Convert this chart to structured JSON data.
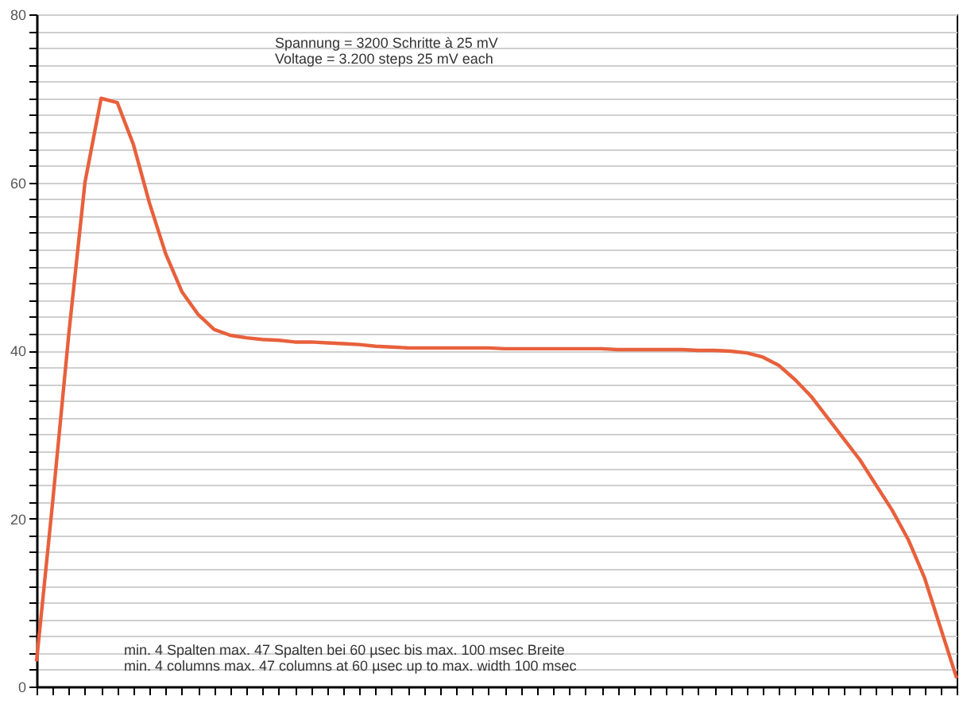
{
  "chart_data": {
    "type": "line",
    "categories": [
      null,
      null,
      null,
      null,
      null,
      null,
      null,
      null,
      null,
      null,
      null,
      null,
      null,
      null,
      null,
      null,
      null,
      null,
      null,
      null,
      null,
      null,
      null,
      null,
      null,
      null,
      null,
      null,
      null,
      null,
      null,
      null,
      null,
      null,
      null,
      null,
      null,
      null,
      null,
      null,
      null,
      null,
      null,
      null,
      null,
      null,
      null,
      null,
      null,
      null,
      null,
      null,
      null,
      null,
      null,
      null,
      null,
      null
    ],
    "series": [
      {
        "color": "#e8603c",
        "values": [
          3,
          22,
          42,
          60,
          70,
          69.5,
          64.5,
          57.5,
          51.5,
          47,
          44.3,
          42.5,
          41.8,
          41.5,
          41.3,
          41.2,
          41,
          41,
          40.9,
          40.8,
          40.7,
          40.5,
          40.4,
          40.3,
          40.3,
          40.3,
          40.3,
          40.3,
          40.3,
          40.2,
          40.2,
          40.2,
          40.2,
          40.2,
          40.2,
          40.2,
          40.1,
          40.1,
          40.1,
          40.1,
          40.1,
          40,
          40,
          39.9,
          39.7,
          39.2,
          38.2,
          36.5,
          34.5,
          32,
          29.5,
          27,
          24,
          21,
          17.5,
          13,
          7,
          1
        ]
      }
    ],
    "ylim": [
      0,
      80
    ],
    "yticks": [
      0,
      {
        "value": 2,
        "label": null
      },
      {
        "value": 4,
        "label": null
      },
      {
        "value": 6,
        "label": null
      },
      {
        "value": 8,
        "label": null
      },
      {
        "value": 10,
        "label": null
      },
      {
        "value": 12,
        "label": null
      },
      {
        "value": 14,
        "label": null
      },
      {
        "value": 16,
        "label": null
      },
      {
        "value": 18,
        "label": null
      },
      20,
      {
        "value": 22,
        "label": null
      },
      {
        "value": 24,
        "label": null
      },
      {
        "value": 26,
        "label": null
      },
      {
        "value": 28,
        "label": null
      },
      {
        "value": 30,
        "label": null
      },
      {
        "value": 32,
        "label": null
      },
      {
        "value": 34,
        "label": null
      },
      {
        "value": 36,
        "label": null
      },
      {
        "value": 38,
        "label": null
      },
      40,
      {
        "value": 42,
        "label": null
      },
      {
        "value": 44,
        "label": null
      },
      {
        "value": 46,
        "label": null
      },
      {
        "value": 48,
        "label": null
      },
      {
        "value": 50,
        "label": null
      },
      {
        "value": 52,
        "label": null
      },
      {
        "value": 54,
        "label": null
      },
      {
        "value": 56,
        "label": null
      },
      {
        "value": 58,
        "label": null
      },
      60,
      {
        "value": 62,
        "label": null
      },
      {
        "value": 64,
        "label": null
      },
      {
        "value": 66,
        "label": null
      },
      {
        "value": 68,
        "label": null
      },
      {
        "value": 70,
        "label": null
      },
      {
        "value": 72,
        "label": null
      },
      {
        "value": 74,
        "label": null
      },
      {
        "value": 76,
        "label": null
      },
      {
        "value": 78,
        "label": null
      },
      80
    ],
    "grid": "y",
    "tick_labels": "y",
    "marker": "none",
    "line_style": "solid",
    "annotations": [
      "Spannung = 3200 Schritte à 25 mV\nVoltage = 3.200 steps 25 mV each",
      "min. 4 Spalten max. 47 Spalten bei 60 µsec bis max. 100 msec Breite\nmin. 4 columns max. 47 columns at 60 µsec up to max. width 100 msec"
    ]
  }
}
